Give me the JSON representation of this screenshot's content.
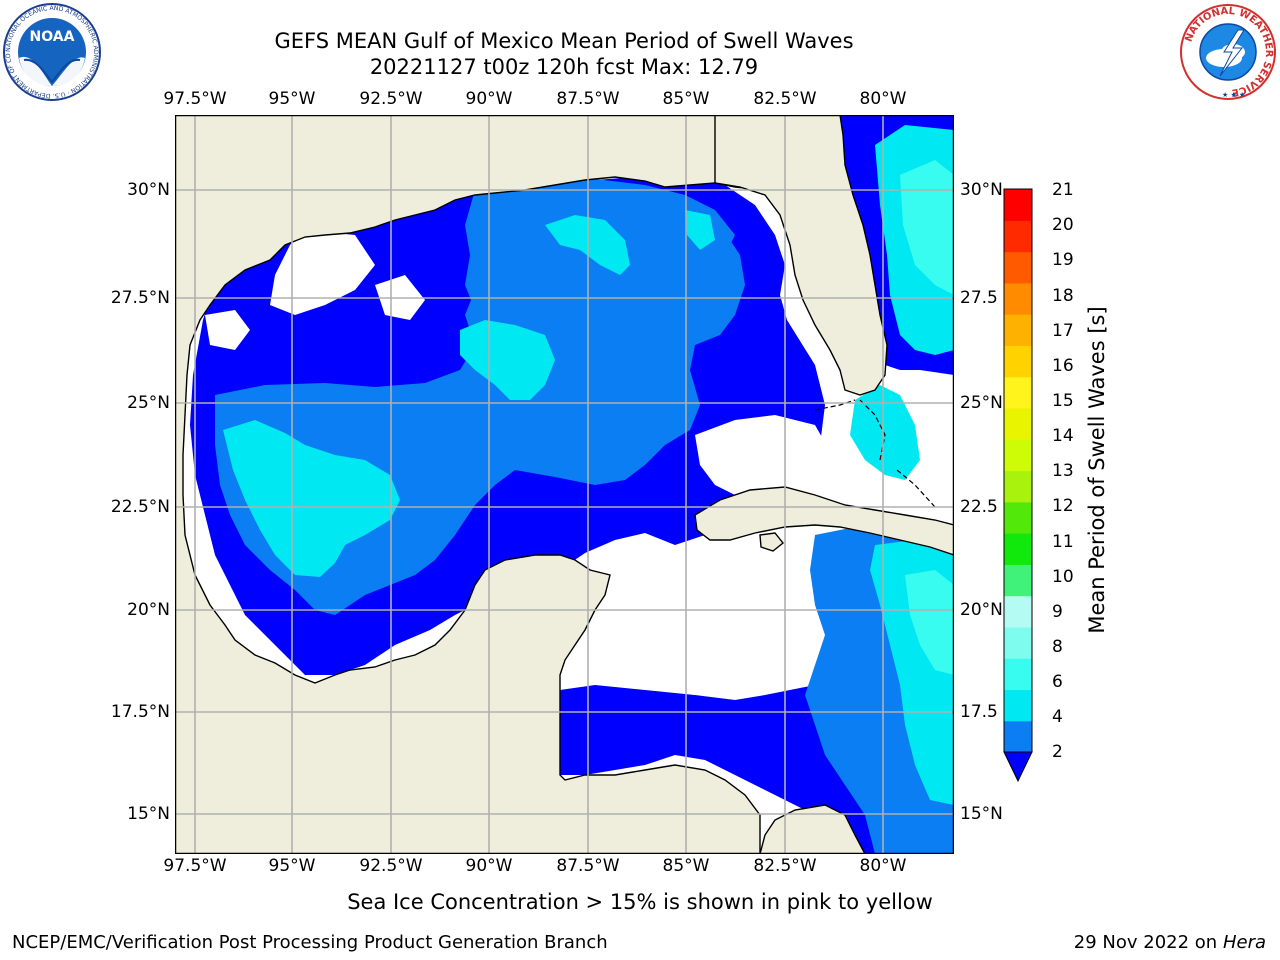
{
  "title_line1": "GEFS MEAN Gulf of Mexico Mean Period of Swell Waves",
  "title_line2": "20221127 t00z 120h fcst   Max: 12.79",
  "noaa_logo": {
    "text": "NOAA",
    "ring_text": "NATIONAL OCEANIC AND ATMOSPHERIC ADMINISTRATION · U.S. DEPARTMENT OF COMMERCE"
  },
  "nws_logo": {
    "ring_text": "NATIONAL WEATHER SERVICE"
  },
  "lon_labels": [
    "97.5°W",
    "95°W",
    "92.5°W",
    "90°W",
    "87.5°W",
    "85°W",
    "82.5°W",
    "80°W"
  ],
  "lat_labels_left": [
    "30°N",
    "27.5°N",
    "25°N",
    "22.5°N",
    "20°N",
    "17.5°N",
    "15°N"
  ],
  "lat_labels_right": [
    "30°N",
    "27.5",
    "25°N",
    "22.5",
    "20°N",
    "17.5",
    "15°N"
  ],
  "colorbar": {
    "label": "Mean Period of Swell Waves [s]",
    "ticks": [
      "2",
      "4",
      "6",
      "8",
      "9",
      "10",
      "11",
      "12",
      "13",
      "14",
      "15",
      "16",
      "17",
      "18",
      "19",
      "20",
      "21"
    ],
    "colors": [
      "#0a7ef2",
      "#00e8f2",
      "#39fcf0",
      "#7efcee",
      "#b4fbf4",
      "#41f27a",
      "#11e80c",
      "#52e80a",
      "#a8f20e",
      "#cdfc06",
      "#e8f400",
      "#fff41b",
      "#ffd200",
      "#ffb100",
      "#ff8c00",
      "#ff5a00",
      "#ff2a00",
      "#ff0000"
    ],
    "under_color": "#0000ff"
  },
  "colors": {
    "land": "#efeedc",
    "sea_nodata": "#ffffff",
    "grid": "#b0b0b0"
  },
  "footer_note": "Sea Ice Concentration > 15% is shown in pink to yellow",
  "footer_left": "NCEP/EMC/Verification Post Processing Product Generation Branch",
  "footer_right_date": "29 Nov 2022 on",
  "footer_right_machine": "Hera"
}
